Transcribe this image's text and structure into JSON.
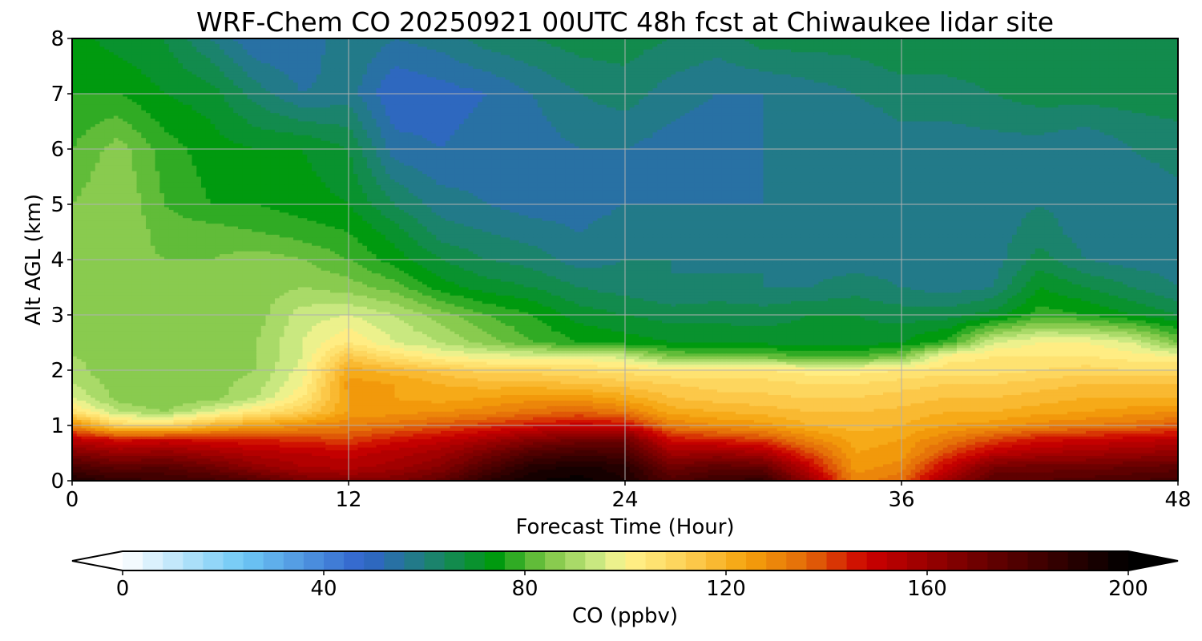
{
  "chart_data": {
    "type": "heatmap",
    "title": "WRF-Chem CO  20250921 00UTC 48h fcst at Chiwaukee lidar site",
    "xlabel": "Forecast Time (Hour)",
    "ylabel": "Alt AGL (km)",
    "xlim": [
      0,
      48
    ],
    "ylim": [
      0,
      8
    ],
    "xticks": [
      0,
      12,
      24,
      36,
      48
    ],
    "yticks": [
      0,
      1,
      2,
      3,
      4,
      5,
      6,
      7,
      8
    ],
    "grid": true,
    "colorbar": {
      "label": "CO  (ppbv)",
      "vmin": 0,
      "vmax": 200,
      "step": 4,
      "ticks": [
        0,
        40,
        80,
        120,
        160,
        200
      ],
      "extend": "both",
      "color_stops": [
        {
          "v": 0,
          "c": "#ffffff"
        },
        {
          "v": 24,
          "c": "#6ec8f5"
        },
        {
          "v": 48,
          "c": "#3163cc"
        },
        {
          "v": 60,
          "c": "#1f7f7c"
        },
        {
          "v": 74,
          "c": "#009a0f"
        },
        {
          "v": 84,
          "c": "#79c443"
        },
        {
          "v": 96,
          "c": "#d9ef8c"
        },
        {
          "v": 100,
          "c": "#fff38c"
        },
        {
          "v": 112,
          "c": "#fdd055"
        },
        {
          "v": 124,
          "c": "#f5a20c"
        },
        {
          "v": 136,
          "c": "#e36a08"
        },
        {
          "v": 148,
          "c": "#cc0000"
        },
        {
          "v": 172,
          "c": "#660000"
        },
        {
          "v": 200,
          "c": "#000000"
        }
      ]
    },
    "x": [
      0,
      2,
      4,
      6,
      8,
      10,
      12,
      14,
      16,
      18,
      20,
      22,
      24,
      26,
      28,
      30,
      32,
      34,
      36,
      38,
      40,
      42,
      44,
      46,
      48
    ],
    "y": [
      0,
      0.25,
      0.5,
      0.75,
      1,
      1.25,
      1.5,
      1.75,
      2,
      2.25,
      2.5,
      3,
      3.5,
      4,
      4.5,
      5,
      6,
      7,
      8
    ],
    "z": [
      [
        192,
        186,
        184,
        182,
        176,
        168,
        165,
        167,
        174,
        188,
        196,
        198,
        192,
        178,
        184,
        186,
        160,
        130,
        135,
        160,
        176,
        176,
        178,
        180,
        182
      ],
      [
        180,
        174,
        176,
        170,
        162,
        156,
        154,
        158,
        164,
        178,
        190,
        193,
        190,
        170,
        174,
        172,
        150,
        126,
        130,
        150,
        168,
        170,
        170,
        172,
        174
      ],
      [
        166,
        160,
        162,
        158,
        154,
        152,
        150,
        154,
        158,
        168,
        178,
        182,
        180,
        158,
        160,
        156,
        140,
        124,
        126,
        140,
        152,
        156,
        158,
        160,
        162
      ],
      [
        152,
        146,
        148,
        146,
        144,
        142,
        140,
        146,
        150,
        156,
        164,
        168,
        170,
        146,
        144,
        140,
        130,
        122,
        124,
        132,
        140,
        146,
        148,
        150,
        152
      ],
      [
        130,
        110,
        108,
        118,
        124,
        128,
        132,
        134,
        138,
        142,
        146,
        150,
        148,
        132,
        128,
        126,
        120,
        118,
        120,
        124,
        126,
        130,
        132,
        134,
        138
      ],
      [
        106,
        92,
        88,
        96,
        104,
        112,
        124,
        126,
        128,
        130,
        134,
        136,
        132,
        122,
        120,
        118,
        116,
        116,
        117,
        120,
        120,
        122,
        124,
        126,
        128
      ],
      [
        96,
        86,
        84,
        86,
        92,
        104,
        124,
        124,
        122,
        124,
        126,
        126,
        122,
        116,
        114,
        113,
        112,
        112,
        114,
        116,
        116,
        118,
        120,
        120,
        120
      ],
      [
        92,
        86,
        84,
        86,
        90,
        100,
        126,
        124,
        120,
        118,
        118,
        116,
        114,
        112,
        110,
        110,
        108,
        108,
        110,
        112,
        112,
        114,
        116,
        116,
        116
      ],
      [
        90,
        84,
        86,
        86,
        88,
        98,
        122,
        118,
        114,
        110,
        110,
        108,
        106,
        104,
        104,
        104,
        102,
        102,
        104,
        106,
        106,
        108,
        110,
        108,
        108
      ],
      [
        88,
        86,
        84,
        86,
        88,
        96,
        114,
        106,
        100,
        98,
        97,
        98,
        94,
        84,
        82,
        82,
        80,
        80,
        84,
        102,
        104,
        104,
        104,
        102,
        100
      ],
      [
        86,
        84,
        86,
        85,
        88,
        96,
        104,
        96,
        92,
        86,
        80,
        76,
        74,
        72,
        72,
        71,
        70,
        70,
        72,
        78,
        96,
        100,
        100,
        96,
        84
      ],
      [
        86,
        84,
        84,
        86,
        86,
        94,
        96,
        92,
        86,
        80,
        76,
        70,
        68,
        66,
        66,
        66,
        68,
        68,
        66,
        66,
        70,
        78,
        76,
        72,
        68
      ],
      [
        86,
        86,
        84,
        86,
        86,
        88,
        86,
        82,
        74,
        70,
        68,
        64,
        62,
        60,
        62,
        60,
        60,
        62,
        60,
        58,
        60,
        72,
        68,
        64,
        60
      ],
      [
        84,
        86,
        84,
        84,
        86,
        84,
        80,
        74,
        68,
        64,
        62,
        58,
        60,
        60,
        58,
        60,
        58,
        58,
        58,
        58,
        58,
        66,
        60,
        58,
        58
      ],
      [
        84,
        88,
        82,
        82,
        80,
        78,
        76,
        70,
        62,
        60,
        58,
        56,
        58,
        58,
        56,
        58,
        56,
        56,
        56,
        58,
        58,
        62,
        58,
        56,
        58
      ],
      [
        84,
        88,
        80,
        76,
        76,
        74,
        72,
        64,
        58,
        56,
        54,
        54,
        56,
        56,
        56,
        56,
        56,
        56,
        56,
        58,
        58,
        60,
        58,
        56,
        58
      ],
      [
        80,
        86,
        78,
        74,
        72,
        72,
        68,
        54,
        52,
        54,
        54,
        56,
        56,
        54,
        52,
        56,
        56,
        56,
        58,
        58,
        58,
        58,
        56,
        60,
        62
      ],
      [
        76,
        76,
        72,
        70,
        62,
        56,
        58,
        48,
        50,
        52,
        56,
        60,
        62,
        58,
        56,
        56,
        58,
        60,
        62,
        62,
        64,
        66,
        66,
        66,
        66
      ],
      [
        74,
        70,
        68,
        60,
        52,
        52,
        60,
        56,
        58,
        62,
        64,
        66,
        66,
        64,
        62,
        66,
        66,
        66,
        68,
        68,
        68,
        68,
        68,
        68,
        68
      ]
    ]
  }
}
